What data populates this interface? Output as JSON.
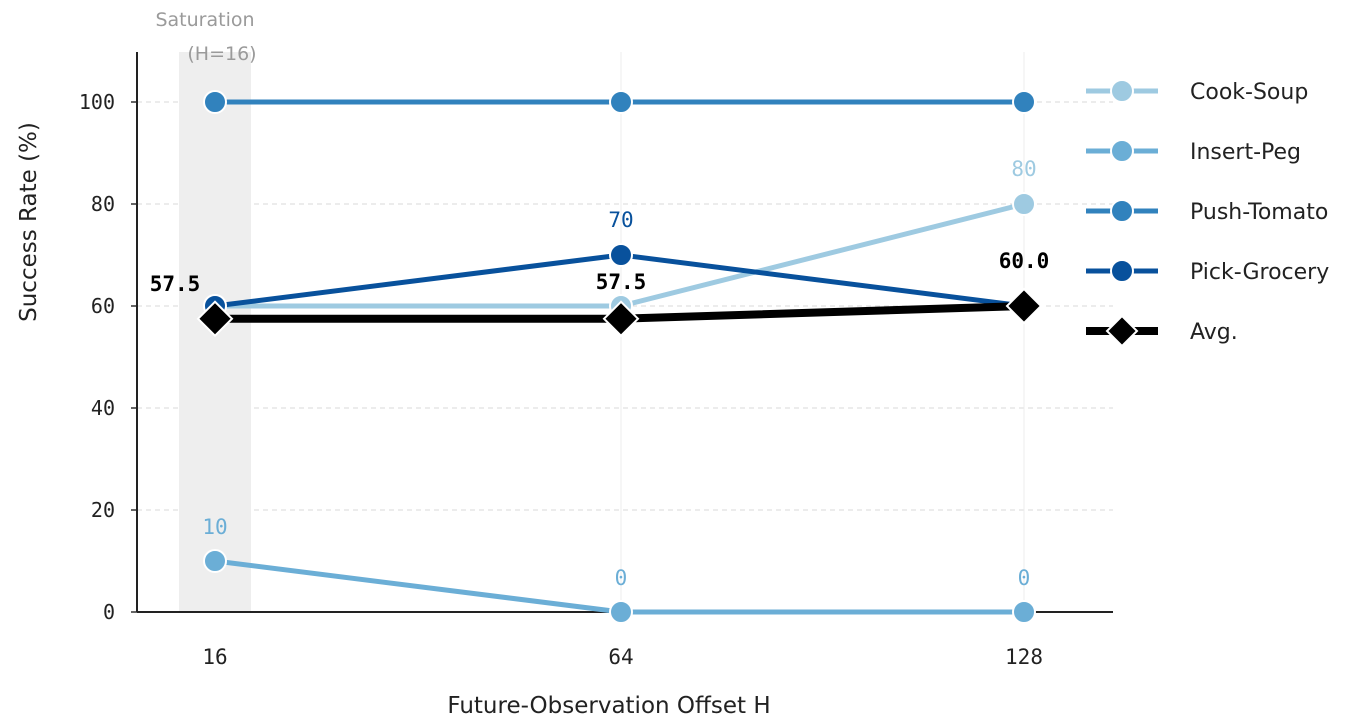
{
  "chart_data": {
    "type": "line",
    "xlabel": "Future-Observation Offset H",
    "ylabel": "Success Rate (%)",
    "x": [
      16,
      64,
      128
    ],
    "x_tick_labels": [
      "16",
      "64",
      "128"
    ],
    "y_ticks": [
      0,
      20,
      40,
      60,
      80,
      100
    ],
    "ylim": [
      0,
      110
    ],
    "grid": true,
    "legend_position": "right",
    "highlight": {
      "label_line1": "Saturation",
      "label_line2": "(H=16)",
      "x": 16
    },
    "series": [
      {
        "name": "Cook-Soup",
        "values": [
          60,
          60,
          80
        ],
        "color": "#9ecae1",
        "marker": "circle",
        "labels": [
          "",
          "",
          "80"
        ]
      },
      {
        "name": "Insert-Peg",
        "values": [
          10,
          0,
          0
        ],
        "color": "#6baed6",
        "marker": "circle",
        "labels": [
          "10",
          "0",
          "0"
        ]
      },
      {
        "name": "Push-Tomato",
        "values": [
          100,
          100,
          100
        ],
        "color": "#3182bd",
        "marker": "circle",
        "labels": [
          "",
          "",
          ""
        ]
      },
      {
        "name": "Pick-Grocery",
        "values": [
          60,
          70,
          60
        ],
        "color": "#08519c",
        "marker": "circle",
        "labels": [
          "",
          "70",
          ""
        ]
      },
      {
        "name": "Avg.",
        "values": [
          57.5,
          57.5,
          60.0
        ],
        "color": "#000000",
        "marker": "diamond",
        "labels": [
          "57.5",
          "57.5",
          "60.0"
        ]
      }
    ]
  }
}
